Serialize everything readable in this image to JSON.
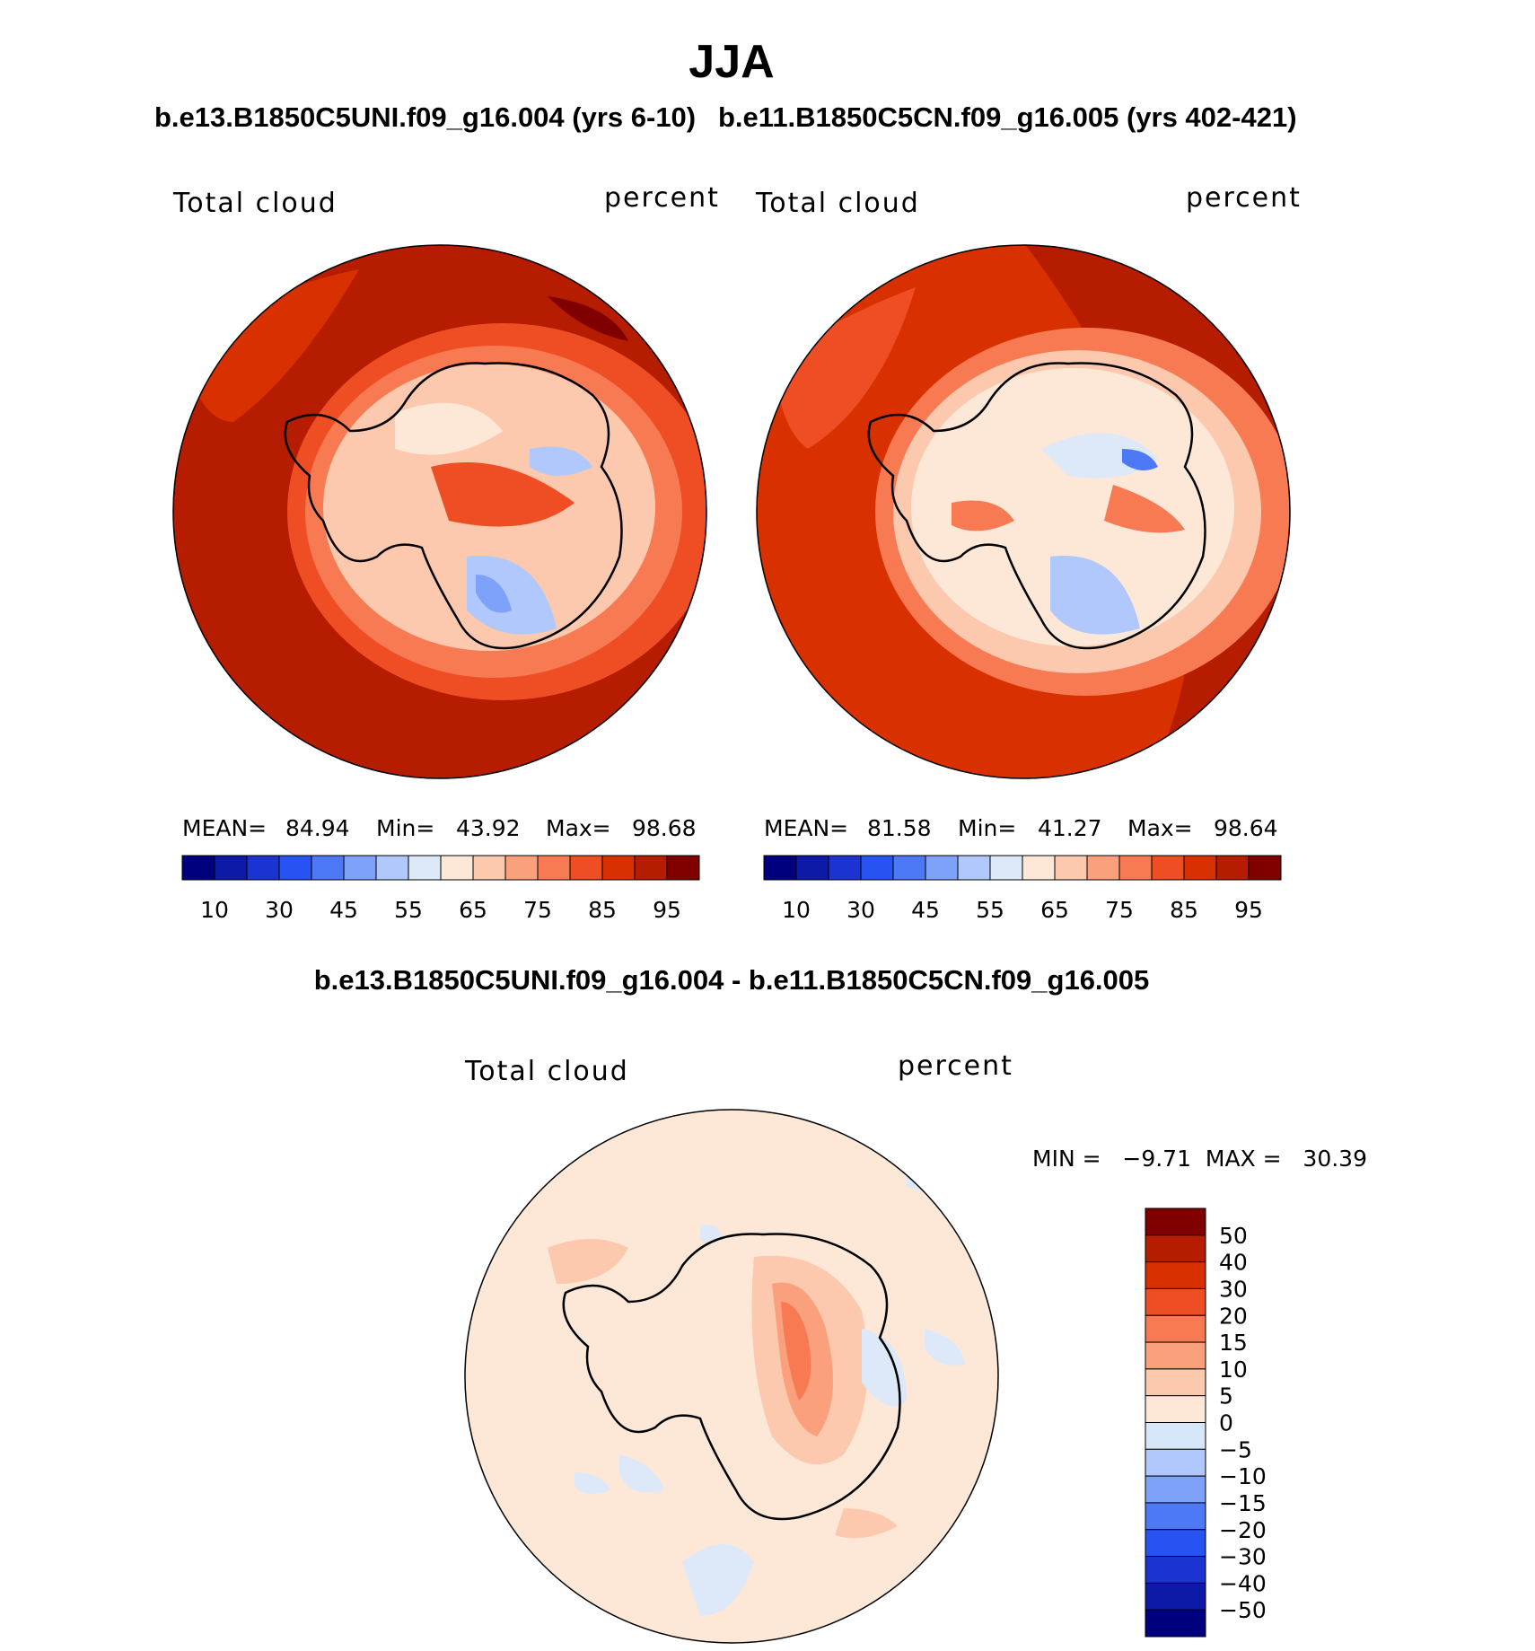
{
  "page_title": "JJA",
  "colors": {
    "seq": [
      "#00007f",
      "#0d1aa8",
      "#1a33d1",
      "#2653f2",
      "#4d79f7",
      "#7ea1fa",
      "#b0c8fb",
      "#dde8f9",
      "#fde8d8",
      "#fcc8ae",
      "#faa07c",
      "#f77a52",
      "#ef4d24",
      "#d93000",
      "#b51c00",
      "#800000"
    ],
    "div": [
      "#00007f",
      "#0d1aa8",
      "#1a33d1",
      "#2653f2",
      "#4d79f7",
      "#7ea1fa",
      "#b0c8fb",
      "#d7e7fa",
      "#fde8d8",
      "#fcc8ae",
      "#faa07c",
      "#f77a52",
      "#ef4d24",
      "#d93000",
      "#b51c00",
      "#800000"
    ]
  },
  "panels": {
    "left": {
      "title": "b.e13.B1850C5UNI.f09_g16.004 (yrs 6-10)",
      "field_label": "Total cloud",
      "units": "percent",
      "mean_label": "MEAN=",
      "mean": "84.94",
      "min_label": "Min=",
      "min": "43.92",
      "max_label": "Max=",
      "max": "98.68"
    },
    "right": {
      "title": "b.e11.B1850C5CN.f09_g16.005 (yrs 402-421)",
      "field_label": "Total cloud",
      "units": "percent",
      "mean_label": "MEAN=",
      "mean": "81.58",
      "min_label": "Min=",
      "min": "41.27",
      "max_label": "Max=",
      "max": "98.64"
    },
    "diff": {
      "title": "b.e13.B1850C5UNI.f09_g16.004 - b.e11.B1850C5CN.f09_g16.005",
      "field_label": "Total cloud",
      "units": "percent",
      "minmax_text": "MIN =   −9.71  MAX =   30.39"
    }
  },
  "chart_data": [
    {
      "type": "heatmap",
      "projection": "south polar stereographic",
      "title": "b.e13.B1850C5UNI.f09_g16.004 (yrs 6-10)",
      "variable": "Total cloud",
      "units": "percent",
      "stats": {
        "mean": 84.94,
        "min": 43.92,
        "max": 98.68
      },
      "colorbar_ticks": [
        "10",
        "30",
        "45",
        "55",
        "65",
        "75",
        "85",
        "95"
      ]
    },
    {
      "type": "heatmap",
      "projection": "south polar stereographic",
      "title": "b.e11.B1850C5CN.f09_g16.005 (yrs 402-421)",
      "variable": "Total cloud",
      "units": "percent",
      "stats": {
        "mean": 81.58,
        "min": 41.27,
        "max": 98.64
      },
      "colorbar_ticks": [
        "10",
        "30",
        "45",
        "55",
        "65",
        "75",
        "85",
        "95"
      ]
    },
    {
      "type": "heatmap",
      "projection": "south polar stereographic",
      "title": "b.e13.B1850C5UNI.f09_g16.004 - b.e11.B1850C5CN.f09_g16.005",
      "variable": "Total cloud",
      "units": "percent",
      "stats": {
        "min": -9.71,
        "max": 30.39
      },
      "colorbar_ticks": [
        "50",
        "40",
        "30",
        "20",
        "15",
        "10",
        "5",
        "0",
        "−5",
        "−10",
        "−15",
        "−20",
        "−30",
        "−40",
        "−50"
      ]
    }
  ]
}
